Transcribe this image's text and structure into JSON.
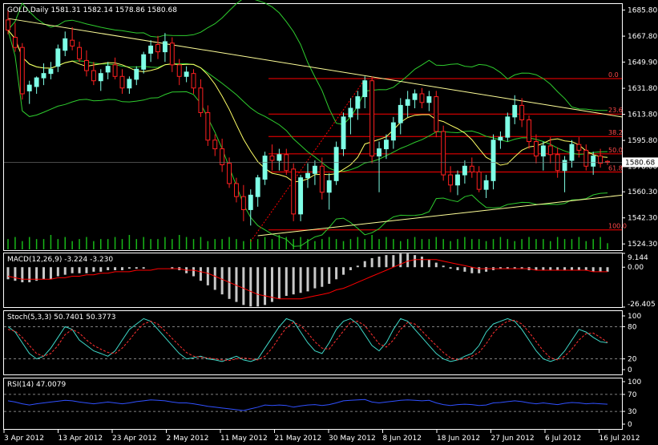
{
  "panels": {
    "main": {
      "header": "GOLD,Daily  1581.31 1582.14 1578.86 1580.68",
      "price_ticks": [
        "1685.80",
        "1667.80",
        "1649.90",
        "1631.80",
        "1613.80",
        "1595.80",
        "1578.00",
        "1560.30",
        "1542.30",
        "1524.30"
      ],
      "current_price": "1580.68",
      "fib_levels": [
        {
          "label": "0.0",
          "price": 1638.5
        },
        {
          "label": "23.6",
          "price": 1614.0
        },
        {
          "label": "38.2",
          "price": 1598.5
        },
        {
          "label": "50.0",
          "price": 1586.5
        },
        {
          "label": "61.8",
          "price": 1574.0
        },
        {
          "label": "100.0",
          "price": 1534.0
        }
      ]
    },
    "macd": {
      "header": "MACD(12,26,9) -3.224 -3.230",
      "ticks": [
        "9.144",
        "0.00",
        "-26.405"
      ]
    },
    "stoch": {
      "header": "Stoch(5,3,3) 50.7401 50.3773",
      "ticks": [
        "100",
        "80",
        "20",
        "0"
      ]
    },
    "rsi": {
      "header": "RSI(14) 47.0079",
      "ticks": [
        "100",
        "70",
        "30",
        "0"
      ]
    }
  },
  "x_axis": {
    "labels": [
      "3 Apr 2012",
      "13 Apr 2012",
      "23 Apr 2012",
      "2 May 2012",
      "11 May 2012",
      "21 May 2012",
      "30 May 2012",
      "8 Jun 2012",
      "18 Jun 2012",
      "27 Jun 2012",
      "6 Jul 2012",
      "16 Jul 2012"
    ]
  },
  "colors": {
    "bull": "#7fffe6",
    "bear": "#ff2020",
    "fib": "#ff0000",
    "trend": "#ffff99",
    "bollinger": "#2ecc2e",
    "ma": "#ffff66",
    "macd_hist": "#c8c8c8",
    "macd_signal": "#ff0000",
    "stoch_main": "#3fd9c9",
    "stoch_signal": "#ff3030",
    "rsi": "#3050ff",
    "volume": "#18b818"
  },
  "chart_data": {
    "type": "candlestick",
    "symbol": "GOLD",
    "timeframe": "Daily",
    "ohlc": [
      [
        1679,
        1686,
        1669,
        1672
      ],
      [
        1667,
        1677,
        1657,
        1660
      ],
      [
        1660,
        1663,
        1624,
        1628
      ],
      [
        1630,
        1637,
        1621,
        1634
      ],
      [
        1633,
        1640,
        1628,
        1639
      ],
      [
        1639,
        1649,
        1634,
        1642
      ],
      [
        1642,
        1650,
        1638,
        1645
      ],
      [
        1647,
        1662,
        1643,
        1659
      ],
      [
        1658,
        1671,
        1654,
        1666
      ],
      [
        1665,
        1674,
        1658,
        1661
      ],
      [
        1660,
        1664,
        1650,
        1652
      ],
      [
        1651,
        1658,
        1640,
        1644
      ],
      [
        1644,
        1650,
        1634,
        1637
      ],
      [
        1637,
        1645,
        1630,
        1642
      ],
      [
        1643,
        1650,
        1638,
        1647
      ],
      [
        1648,
        1653,
        1638,
        1640
      ],
      [
        1640,
        1645,
        1628,
        1632
      ],
      [
        1632,
        1640,
        1628,
        1638
      ],
      [
        1638,
        1647,
        1634,
        1645
      ],
      [
        1645,
        1657,
        1642,
        1655
      ],
      [
        1656,
        1665,
        1650,
        1661
      ],
      [
        1662,
        1668,
        1652,
        1657
      ],
      [
        1657,
        1670,
        1650,
        1664
      ],
      [
        1663,
        1667,
        1643,
        1648
      ],
      [
        1648,
        1652,
        1634,
        1640
      ],
      [
        1640,
        1647,
        1636,
        1643
      ],
      [
        1642,
        1645,
        1628,
        1632
      ],
      [
        1632,
        1638,
        1612,
        1615
      ],
      [
        1615,
        1620,
        1592,
        1596
      ],
      [
        1596,
        1600,
        1585,
        1590
      ],
      [
        1590,
        1597,
        1574,
        1579
      ],
      [
        1580,
        1584,
        1563,
        1566
      ],
      [
        1566,
        1570,
        1553,
        1557
      ],
      [
        1557,
        1565,
        1540,
        1548
      ],
      [
        1548,
        1562,
        1537,
        1558
      ],
      [
        1557,
        1572,
        1550,
        1570
      ],
      [
        1569,
        1588,
        1565,
        1585
      ],
      [
        1585,
        1593,
        1575,
        1582
      ],
      [
        1582,
        1590,
        1575,
        1586
      ],
      [
        1586,
        1590,
        1572,
        1575
      ],
      [
        1576,
        1580,
        1540,
        1545
      ],
      [
        1545,
        1572,
        1540,
        1570
      ],
      [
        1570,
        1580,
        1563,
        1573
      ],
      [
        1573,
        1582,
        1565,
        1578
      ],
      [
        1578,
        1584,
        1555,
        1560
      ],
      [
        1560,
        1573,
        1548,
        1568
      ],
      [
        1568,
        1595,
        1565,
        1591
      ],
      [
        1590,
        1615,
        1585,
        1612
      ],
      [
        1612,
        1625,
        1600,
        1618
      ],
      [
        1618,
        1630,
        1610,
        1626
      ],
      [
        1626,
        1640,
        1618,
        1637
      ],
      [
        1637,
        1640,
        1580,
        1585
      ],
      [
        1585,
        1595,
        1560,
        1590
      ],
      [
        1590,
        1600,
        1583,
        1596
      ],
      [
        1596,
        1612,
        1590,
        1608
      ],
      [
        1608,
        1625,
        1600,
        1620
      ],
      [
        1620,
        1630,
        1612,
        1624
      ],
      [
        1624,
        1631,
        1618,
        1628
      ],
      [
        1628,
        1632,
        1618,
        1622
      ],
      [
        1622,
        1630,
        1616,
        1626
      ],
      [
        1626,
        1630,
        1598,
        1602
      ],
      [
        1602,
        1606,
        1568,
        1572
      ],
      [
        1572,
        1578,
        1560,
        1565
      ],
      [
        1565,
        1575,
        1558,
        1572
      ],
      [
        1572,
        1582,
        1566,
        1578
      ],
      [
        1578,
        1584,
        1570,
        1574
      ],
      [
        1574,
        1578,
        1560,
        1562
      ],
      [
        1562,
        1572,
        1556,
        1568
      ],
      [
        1568,
        1600,
        1562,
        1596
      ],
      [
        1596,
        1602,
        1590,
        1598
      ],
      [
        1598,
        1615,
        1595,
        1612
      ],
      [
        1612,
        1627,
        1607,
        1620
      ],
      [
        1620,
        1625,
        1605,
        1610
      ],
      [
        1610,
        1613,
        1590,
        1595
      ],
      [
        1595,
        1600,
        1580,
        1585
      ],
      [
        1585,
        1595,
        1575,
        1592
      ],
      [
        1592,
        1598,
        1580,
        1586
      ],
      [
        1586,
        1591,
        1570,
        1575
      ],
      [
        1575,
        1585,
        1560,
        1582
      ],
      [
        1582,
        1596,
        1577,
        1593
      ],
      [
        1593,
        1598,
        1584,
        1589
      ],
      [
        1589,
        1593,
        1575,
        1578
      ],
      [
        1578,
        1588,
        1572,
        1585
      ],
      [
        1585,
        1590,
        1577,
        1580
      ],
      [
        1581.31,
        1582.14,
        1578.86,
        1580.68
      ]
    ],
    "volume": [
      5,
      6,
      4,
      6,
      5,
      5,
      7,
      5,
      6,
      4,
      5,
      6,
      4,
      5,
      5,
      6,
      5,
      7,
      5,
      6,
      5,
      5,
      6,
      5,
      7,
      6,
      5,
      6,
      4,
      5,
      5,
      6,
      5,
      4,
      5,
      5,
      6,
      5,
      7,
      6,
      5,
      6,
      5,
      4,
      5,
      6,
      5,
      4,
      5,
      6,
      5,
      7,
      5,
      6,
      5,
      4,
      5,
      6,
      5,
      5,
      6,
      5,
      4,
      5,
      6,
      5,
      5,
      4,
      5,
      6,
      5,
      4,
      5,
      6,
      5,
      5,
      4,
      6,
      5,
      5,
      6,
      4,
      5,
      6,
      3
    ],
    "price_range": [
      1520,
      1690
    ],
    "macd_hist": [
      -8,
      -9,
      -10,
      -10,
      -9,
      -8,
      -8,
      -6,
      -5,
      -4,
      -4,
      -4,
      -3,
      -3,
      -2,
      -2,
      -2,
      -1,
      -1,
      -1,
      0,
      0,
      0,
      -1,
      -2,
      -4,
      -6,
      -9,
      -12,
      -15,
      -18,
      -21,
      -23,
      -25,
      -26,
      -26,
      -25,
      -23,
      -21,
      -19,
      -18,
      -17,
      -16,
      -14,
      -13,
      -11,
      -8,
      -5,
      -2,
      1,
      4,
      6,
      7,
      8,
      8,
      9,
      9,
      8,
      7,
      5,
      3,
      1,
      -1,
      -2,
      -3,
      -4,
      -4,
      -3,
      -2,
      -1,
      -1,
      -1,
      -1,
      -2,
      -2,
      -2,
      -2,
      -2,
      -2,
      -2,
      -2,
      -2,
      -3,
      -3,
      -3
    ],
    "macd_signal": [
      -6,
      -7,
      -8,
      -8,
      -8,
      -8,
      -8,
      -7,
      -7,
      -6,
      -6,
      -5,
      -5,
      -4,
      -4,
      -3,
      -3,
      -3,
      -2,
      -2,
      -2,
      -1,
      -1,
      -1,
      -1,
      -2,
      -2,
      -3,
      -4,
      -6,
      -8,
      -10,
      -12,
      -14,
      -16,
      -18,
      -19,
      -20,
      -21,
      -21,
      -21,
      -21,
      -20,
      -19,
      -18,
      -17,
      -15,
      -14,
      -12,
      -10,
      -8,
      -6,
      -4,
      -2,
      0,
      2,
      4,
      5,
      5,
      5,
      5,
      4,
      3,
      2,
      1,
      0,
      -1,
      -1,
      -1,
      -1,
      -1,
      -1,
      -1,
      -1,
      -2,
      -2,
      -2,
      -2,
      -2,
      -2,
      -2,
      -2,
      -3,
      -3,
      -3
    ],
    "stoch_main": [
      80,
      70,
      50,
      30,
      20,
      25,
      40,
      60,
      80,
      75,
      55,
      45,
      35,
      30,
      25,
      35,
      55,
      75,
      85,
      95,
      90,
      75,
      60,
      45,
      30,
      20,
      22,
      25,
      20,
      18,
      15,
      20,
      25,
      18,
      15,
      20,
      40,
      60,
      80,
      95,
      90,
      70,
      50,
      35,
      30,
      50,
      75,
      90,
      95,
      85,
      65,
      45,
      35,
      50,
      75,
      95,
      90,
      75,
      60,
      45,
      30,
      20,
      15,
      18,
      25,
      30,
      45,
      70,
      85,
      90,
      95,
      90,
      75,
      55,
      35,
      20,
      15,
      20,
      35,
      55,
      75,
      70,
      60,
      52,
      50
    ],
    "stoch_signal": [
      75,
      72,
      60,
      45,
      30,
      25,
      30,
      45,
      65,
      75,
      68,
      55,
      45,
      38,
      32,
      30,
      40,
      55,
      72,
      85,
      90,
      85,
      72,
      58,
      45,
      32,
      25,
      23,
      22,
      20,
      18,
      17,
      20,
      22,
      20,
      18,
      25,
      40,
      60,
      78,
      88,
      82,
      68,
      52,
      40,
      38,
      55,
      72,
      88,
      90,
      82,
      65,
      48,
      42,
      55,
      75,
      88,
      85,
      72,
      58,
      45,
      32,
      22,
      18,
      20,
      25,
      32,
      48,
      68,
      82,
      90,
      92,
      85,
      70,
      52,
      35,
      22,
      18,
      25,
      38,
      55,
      67,
      68,
      60,
      51
    ],
    "rsi": [
      55,
      52,
      48,
      45,
      48,
      50,
      52,
      54,
      56,
      55,
      52,
      50,
      48,
      50,
      52,
      50,
      48,
      50,
      53,
      55,
      57,
      56,
      55,
      52,
      50,
      50,
      48,
      45,
      42,
      40,
      38,
      36,
      34,
      32,
      36,
      40,
      45,
      44,
      45,
      44,
      40,
      43,
      45,
      46,
      44,
      46,
      50,
      55,
      56,
      57,
      58,
      52,
      50,
      52,
      54,
      56,
      57,
      56,
      55,
      56,
      50,
      46,
      44,
      46,
      47,
      46,
      44,
      45,
      50,
      51,
      53,
      55,
      53,
      50,
      48,
      50,
      48,
      46,
      49,
      51,
      50,
      48,
      49,
      48,
      47
    ]
  }
}
